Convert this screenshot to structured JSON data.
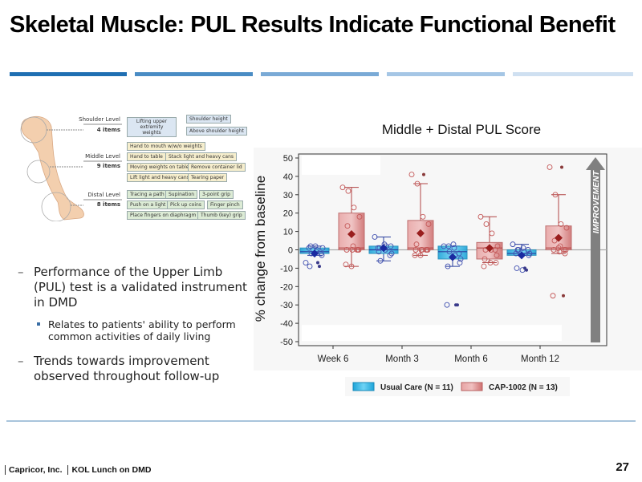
{
  "slide": {
    "title": "Skeletal Muscle: PUL Results Indicate Functional Benefit",
    "rule_colors": [
      "#1f6fb2",
      "#4a8cc4",
      "#7aaad6",
      "#a5c6e5",
      "#cfe0f1"
    ],
    "page_number": "27",
    "footer": {
      "company": "Capricor, Inc.",
      "event": "KOL Lunch on DMD"
    }
  },
  "figure": {
    "levels": [
      {
        "name": "Shoulder Level",
        "count": "4 items",
        "items": [
          "Lifting upper extremity weights",
          "Shoulder height",
          "Above shoulder height"
        ]
      },
      {
        "name": "Middle Level",
        "count": "9 items",
        "items": [
          "Hand to mouth w/w/o weights",
          "Hand to table",
          "Stack light and heavy cans",
          "Moving weights on table",
          "Remove container lid",
          "Lift light and heavy cans",
          "Tearing paper"
        ]
      },
      {
        "name": "Distal Level",
        "count": "8 items",
        "items": [
          "Tracing a path",
          "Supination",
          "3-point grip",
          "Push on a light",
          "Pick up coins",
          "Finger pinch",
          "Place fingers on diaphragm",
          "Thumb (key) grip"
        ]
      }
    ]
  },
  "bullets": [
    {
      "text": "Performance of the Upper Limb (PUL) test is a validated instrument in DMD",
      "sub": [
        "Relates to patients' ability to perform common activities of daily living"
      ]
    },
    {
      "text": "Trends towards improvement observed throughout follow-up",
      "sub": []
    }
  ],
  "chart_data": {
    "type": "box",
    "title": "Middle + Distal PUL Score",
    "xlabel": "",
    "ylabel": "% change from baseline",
    "ylim": [
      -50,
      50
    ],
    "yticks": [
      50,
      40,
      30,
      20,
      10,
      0,
      -10,
      -20,
      -30,
      -40,
      -50
    ],
    "categories": [
      "Week 6",
      "Month 3",
      "Month 6",
      "Month 12"
    ],
    "annotation": "IMPROVEMENT",
    "legend_position": "bottom",
    "series": [
      {
        "name": "Usual Care (N = 11)",
        "color": "#29b6e6",
        "stats": [
          {
            "q1": -2,
            "median": -1,
            "q3": 1,
            "mean": -2,
            "whisker_low": -3,
            "whisker_high": 2,
            "outliers": [
              -7,
              -9
            ],
            "points": [
              -7,
              -2,
              0,
              1,
              2,
              -1,
              -3,
              -9,
              2,
              -2,
              1
            ]
          },
          {
            "q1": -2,
            "median": 0,
            "q3": 2,
            "mean": 1,
            "whisker_low": -6,
            "whisker_high": 7,
            "outliers": [],
            "points": [
              7,
              -6,
              2,
              -2,
              1,
              0,
              2,
              -1,
              3,
              -3,
              1
            ]
          },
          {
            "q1": -5,
            "median": -1,
            "q3": 2,
            "mean": -4,
            "whisker_low": -9,
            "whisker_high": 2,
            "outliers": [
              -30,
              -30
            ],
            "points": [
              2,
              -1,
              -3,
              -5,
              2,
              1,
              -7,
              -9,
              3,
              -2,
              -30
            ]
          },
          {
            "q1": -3,
            "median": -2,
            "q3": 0,
            "mean": -3,
            "whisker_low": -3,
            "whisker_high": 3,
            "outliers": [
              -10,
              -11
            ],
            "points": [
              3,
              0,
              -1,
              -2,
              0,
              1,
              -3,
              -10,
              -11,
              0,
              -2
            ]
          }
        ]
      },
      {
        "name": "CAP-1002 (N = 13)",
        "color": "#d46a6a",
        "stats": [
          {
            "q1": 0,
            "median": 1,
            "q3": 20,
            "mean": 8.5,
            "whisker_low": -9,
            "whisker_high": 34,
            "outliers": [],
            "points": [
              34,
              32,
              23,
              18,
              13,
              2,
              0,
              0,
              0,
              0,
              -8,
              -9,
              0
            ]
          },
          {
            "q1": 0,
            "median": 1,
            "q3": 16,
            "mean": 9,
            "whisker_low": -3,
            "whisker_high": 36,
            "outliers": [
              41
            ],
            "points": [
              41,
              36,
              18,
              14,
              3,
              0,
              0,
              0,
              0,
              0,
              -3,
              -3,
              0
            ]
          },
          {
            "q1": -5,
            "median": 1,
            "q3": 4,
            "mean": 1,
            "whisker_low": -7,
            "whisker_high": 18,
            "outliers": [],
            "points": [
              18,
              14,
              9,
              2,
              0,
              0,
              -3,
              -5,
              -7,
              -7,
              -9,
              1,
              0
            ]
          },
          {
            "q1": 0,
            "median": 1,
            "q3": 13,
            "mean": 6.5,
            "whisker_low": -2,
            "whisker_high": 30,
            "outliers": [
              45,
              -25
            ],
            "points": [
              45,
              30,
              14,
              12,
              5,
              2,
              0,
              0,
              -1,
              -2,
              -25,
              1,
              0
            ]
          }
        ]
      }
    ]
  }
}
